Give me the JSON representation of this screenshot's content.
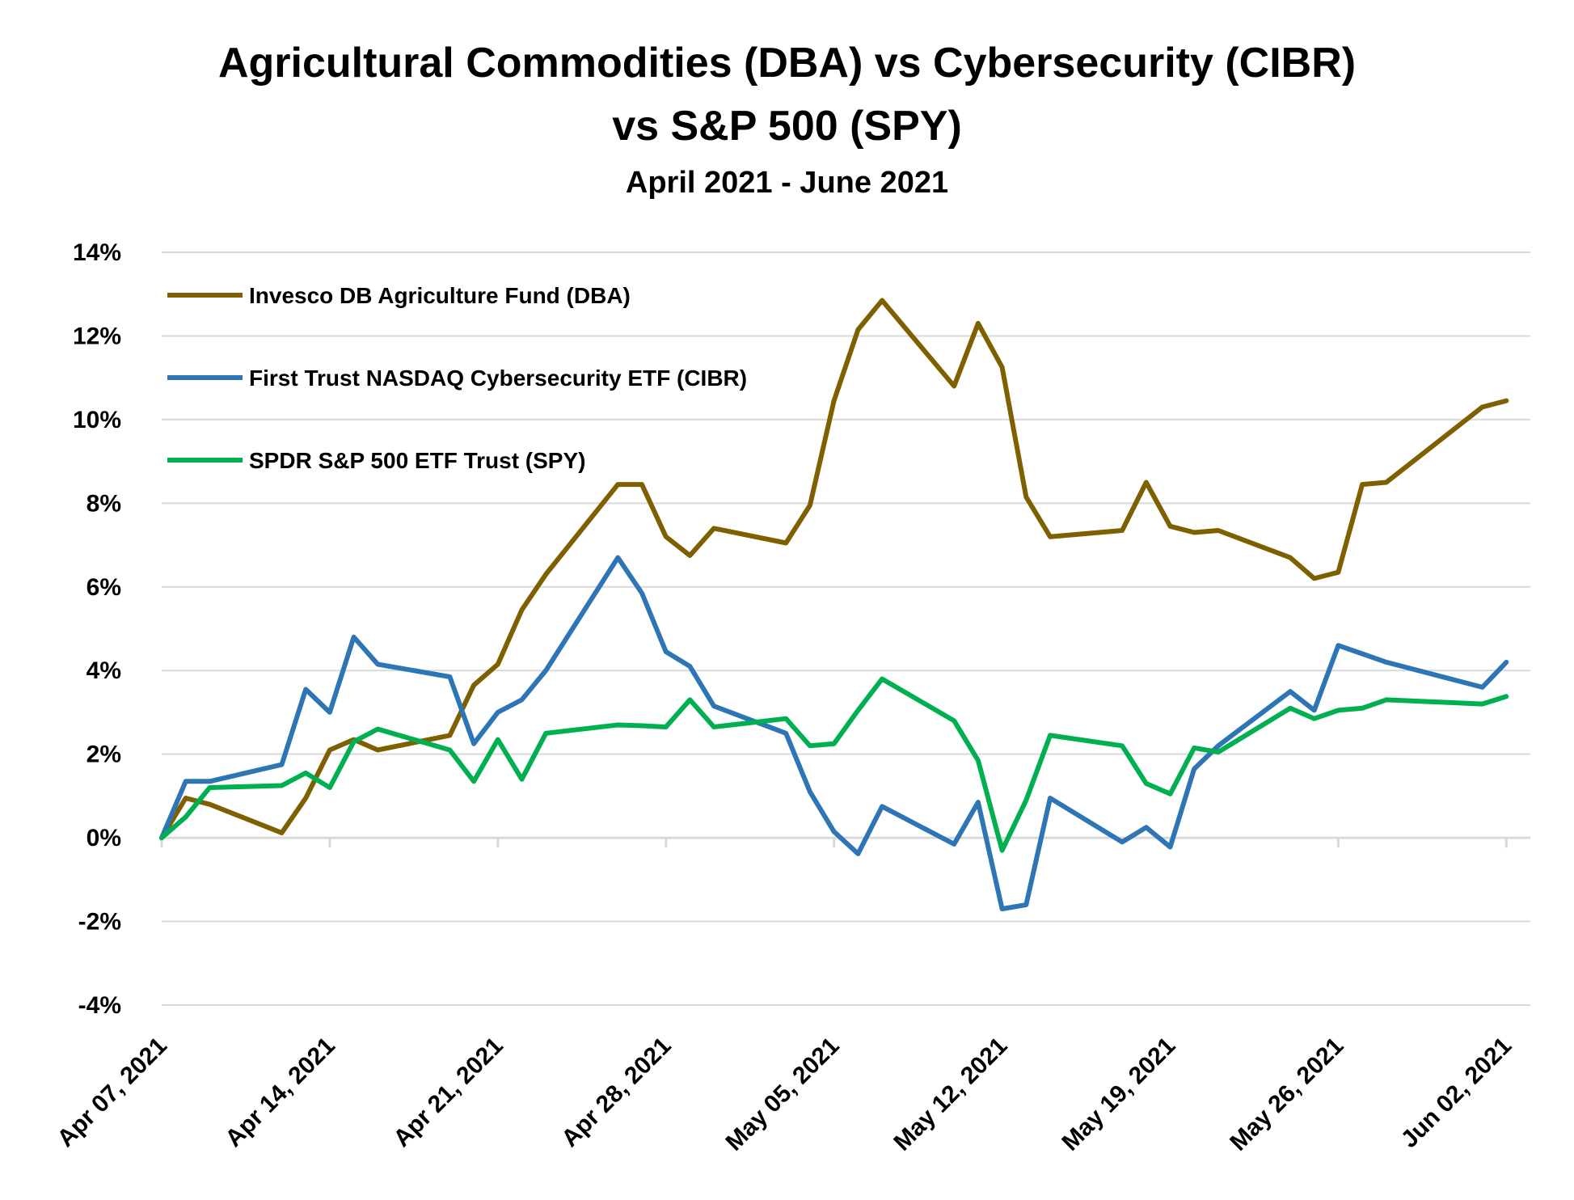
{
  "chart_data": {
    "type": "line",
    "title_lines": [
      "Agricultural Commodities (DBA) vs Cybersecurity (CIBR)",
      "vs S&P 500 (SPY)"
    ],
    "subtitle": "April 2021 - June 2021",
    "xlabel": "",
    "ylabel": "",
    "ylim": [
      -4,
      14
    ],
    "yticks": [
      "14%",
      "12%",
      "10%",
      "8%",
      "6%",
      "4%",
      "2%",
      "0%",
      "-2%",
      "-4%"
    ],
    "xlim": [
      "2021-04-07",
      "2021-06-03"
    ],
    "xticks": [
      {
        "date": "2021-04-07",
        "label": "Apr 07, 2021"
      },
      {
        "date": "2021-04-14",
        "label": "Apr 14, 2021"
      },
      {
        "date": "2021-04-21",
        "label": "Apr 21, 2021"
      },
      {
        "date": "2021-04-28",
        "label": "Apr 28, 2021"
      },
      {
        "date": "2021-05-05",
        "label": "May 05, 2021"
      },
      {
        "date": "2021-05-12",
        "label": "May 12, 2021"
      },
      {
        "date": "2021-05-19",
        "label": "May 19, 2021"
      },
      {
        "date": "2021-05-26",
        "label": "May 26, 2021"
      },
      {
        "date": "2021-06-02",
        "label": "Jun 02, 2021"
      }
    ],
    "grid": true,
    "legend_position": "top-left",
    "x": [
      "2021-04-07",
      "2021-04-08",
      "2021-04-09",
      "2021-04-12",
      "2021-04-13",
      "2021-04-14",
      "2021-04-15",
      "2021-04-16",
      "2021-04-19",
      "2021-04-20",
      "2021-04-21",
      "2021-04-22",
      "2021-04-23",
      "2021-04-26",
      "2021-04-27",
      "2021-04-28",
      "2021-04-29",
      "2021-04-30",
      "2021-05-03",
      "2021-05-04",
      "2021-05-05",
      "2021-05-06",
      "2021-05-07",
      "2021-05-10",
      "2021-05-11",
      "2021-05-12",
      "2021-05-13",
      "2021-05-14",
      "2021-05-17",
      "2021-05-18",
      "2021-05-19",
      "2021-05-20",
      "2021-05-21",
      "2021-05-24",
      "2021-05-25",
      "2021-05-26",
      "2021-05-27",
      "2021-05-28",
      "2021-06-01",
      "2021-06-02"
    ],
    "series": [
      {
        "name": "Invesco DB Agriculture Fund (DBA)",
        "color": "#7f6000",
        "values": [
          0.0,
          0.95,
          0.8,
          0.12,
          0.95,
          2.1,
          2.35,
          2.1,
          2.45,
          3.65,
          4.15,
          5.45,
          6.3,
          8.45,
          8.45,
          7.2,
          6.75,
          7.4,
          7.05,
          7.95,
          10.45,
          12.15,
          12.85,
          10.8,
          12.3,
          11.25,
          8.15,
          7.2,
          7.35,
          8.5,
          7.45,
          7.3,
          7.35,
          6.7,
          6.2,
          6.35,
          8.45,
          8.5,
          10.3,
          10.45
        ]
      },
      {
        "name": "First Trust NASDAQ Cybersecurity ETF (CIBR)",
        "color": "#2e75b6",
        "values": [
          0.0,
          1.35,
          1.35,
          1.75,
          3.55,
          3.0,
          4.8,
          4.15,
          3.85,
          2.25,
          3.0,
          3.3,
          4.0,
          6.7,
          5.85,
          4.45,
          4.1,
          3.15,
          2.5,
          1.1,
          0.15,
          -0.38,
          0.75,
          -0.15,
          0.85,
          -1.7,
          -1.6,
          0.95,
          -0.1,
          0.25,
          -0.22,
          1.65,
          2.2,
          3.5,
          3.05,
          4.6,
          4.4,
          4.2,
          3.6,
          4.2
        ]
      },
      {
        "name": "SPDR S&P 500 ETF Trust (SPY)",
        "color": "#00b050",
        "values": [
          0.0,
          0.5,
          1.2,
          1.25,
          1.55,
          1.2,
          2.3,
          2.6,
          2.1,
          1.35,
          2.35,
          1.4,
          2.5,
          2.7,
          2.68,
          2.65,
          3.3,
          2.65,
          2.85,
          2.2,
          2.25,
          3.05,
          3.8,
          2.8,
          1.85,
          -0.3,
          0.9,
          2.45,
          2.2,
          1.3,
          1.05,
          2.15,
          2.05,
          3.1,
          2.85,
          3.05,
          3.1,
          3.3,
          3.2,
          3.38
        ]
      }
    ]
  }
}
